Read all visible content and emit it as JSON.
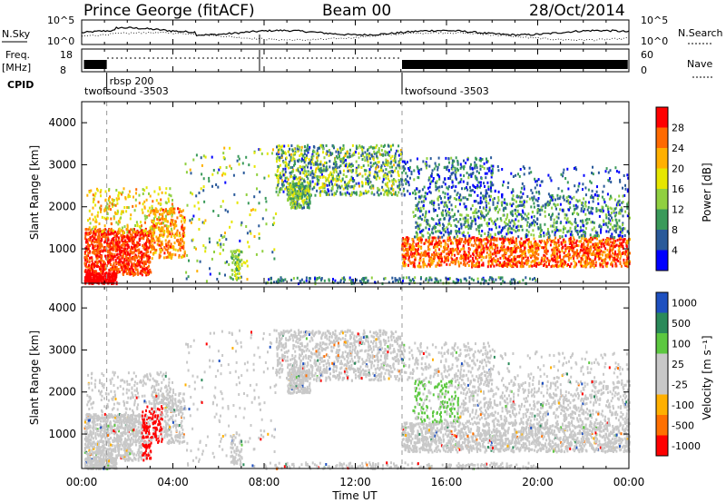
{
  "header": {
    "station": "Prince George (fitACF)",
    "beam": "Beam 00",
    "date": "28/Oct/2014"
  },
  "side_labels": {
    "nsky": "N.Sky",
    "nsearch": "N.Search",
    "freq": "Freq.",
    "freq_unit": "[MHz]",
    "nave": "Nave",
    "cpid": "CPID"
  },
  "sky_axis_ticks": [
    "10^5",
    "10^0"
  ],
  "freq_axis_ticks": [
    "18",
    "8"
  ],
  "nave_axis_ticks": [
    "60",
    "0"
  ],
  "cpid_labels": [
    {
      "text": "rbsp 200",
      "hour": 1.1
    },
    {
      "text": "twofsound -3503",
      "hour": 0.0
    },
    {
      "text": "twofsound -3503",
      "hour": 14.05
    }
  ],
  "xaxis": {
    "label": "Time UT",
    "ticks": [
      "00:00",
      "04:00",
      "08:00",
      "12:00",
      "16:00",
      "20:00",
      "00:00"
    ],
    "range_hours": [
      0,
      24
    ]
  },
  "chart_data": [
    {
      "type": "heatmap",
      "title": "Power",
      "ylabel": "Slant Range [km]",
      "xlabel": "Time UT",
      "ylim": [
        180,
        4500
      ],
      "yticks": [
        "1000",
        "2000",
        "3000",
        "4000"
      ],
      "colorbar": {
        "label": "Power [dB]",
        "ticks": [
          "28",
          "24",
          "20",
          "16",
          "12",
          "8",
          "4"
        ],
        "colors": [
          "#ff0000",
          "#ff6a00",
          "#ffb000",
          "#e6e600",
          "#90d040",
          "#3a9a5a",
          "#2a5a9a",
          "#0000ff"
        ]
      }
    },
    {
      "type": "heatmap",
      "title": "Velocity",
      "ylabel": "Slant Range [km]",
      "xlabel": "Time UT",
      "ylim": [
        180,
        4500
      ],
      "yticks": [
        "1000",
        "2000",
        "3000",
        "4000"
      ],
      "colorbar": {
        "label": "Velocity [m s⁻¹]",
        "ticks": [
          "1000",
          "500",
          "100",
          "25",
          "-25",
          "-100",
          "-500",
          "-1000"
        ],
        "colors": [
          "#1e50c0",
          "#2a8a5a",
          "#5cc840",
          "#c8c8c8",
          "#c8c8c8",
          "#ffb000",
          "#ff7000",
          "#ff0000"
        ]
      }
    }
  ]
}
